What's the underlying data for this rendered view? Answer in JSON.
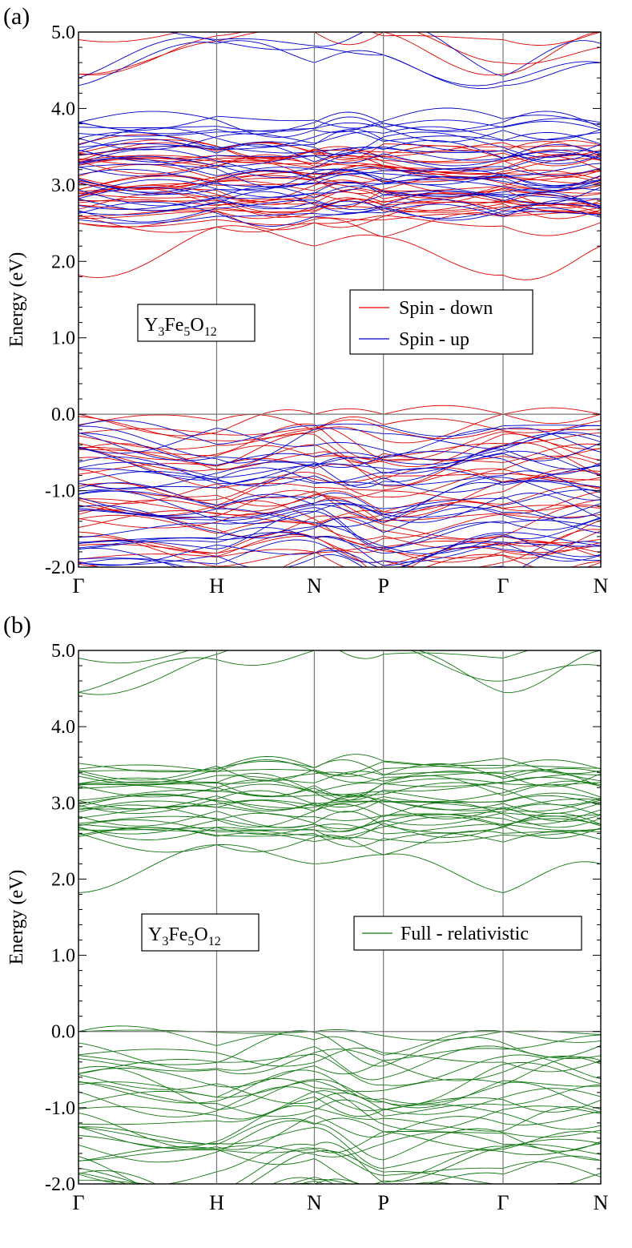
{
  "chart_data": [
    {
      "panel_label": "(a)",
      "type": "line",
      "ylabel": "Energy (eV)",
      "ylim": [
        -2.0,
        5.0
      ],
      "yticks": [
        "-2.0",
        "-1.0",
        "0.0",
        "1.0",
        "2.0",
        "3.0",
        "4.0",
        "5.0"
      ],
      "xticks": [
        "Γ",
        "H",
        "N",
        "P",
        "Γ",
        "N"
      ],
      "kpoint_positions": [
        0,
        1,
        1.707,
        2.207,
        3.073,
        3.78
      ],
      "fermi_level": 0.0,
      "compound": {
        "base": "Y",
        "n1": "3",
        "el2": "Fe",
        "n2": "5",
        "el3": "O",
        "n3": "12"
      },
      "legend": [
        {
          "label": "Spin - down",
          "color": "#dd0000"
        },
        {
          "label": "Spin - up",
          "color": "#0000cc"
        }
      ],
      "series": [
        {
          "name": "Spin - down",
          "color": "#dd0000",
          "valence_range": [
            -2.0,
            0.0
          ],
          "vbm_at": "Γ",
          "conduction_range": [
            1.82,
            5.0
          ],
          "cbm_at": "Γ",
          "cbm_value": 1.82,
          "dense_band_energy": 2.7
        },
        {
          "name": "Spin - up",
          "color": "#0000cc",
          "valence_range": [
            -2.0,
            -0.15
          ],
          "conduction_range": [
            2.6,
            5.0
          ],
          "cbm_value": 2.6,
          "dense_band_energy": 2.7
        }
      ]
    },
    {
      "panel_label": "(b)",
      "type": "line",
      "ylabel": "Energy (eV)",
      "ylim": [
        -2.0,
        5.0
      ],
      "yticks": [
        "-2.0",
        "-1.0",
        "0.0",
        "1.0",
        "2.0",
        "3.0",
        "4.0",
        "5.0"
      ],
      "xticks": [
        "Γ",
        "H",
        "N",
        "P",
        "Γ",
        "N"
      ],
      "kpoint_positions": [
        0,
        1,
        1.707,
        2.207,
        3.073,
        3.78
      ],
      "fermi_level": 0.0,
      "compound": {
        "base": "Y",
        "n1": "3",
        "el2": "Fe",
        "n2": "5",
        "el3": "O",
        "n3": "12"
      },
      "legend": [
        {
          "label": "Full - relativistic",
          "color": "#117711"
        }
      ],
      "series": [
        {
          "name": "Full - relativistic",
          "color": "#117711",
          "valence_range": [
            -2.0,
            0.0
          ],
          "vbm_at": "Γ",
          "conduction_range": [
            1.82,
            5.0
          ],
          "cbm_at": "Γ",
          "cbm_value": 1.82,
          "dense_band_energy": 2.7
        }
      ]
    }
  ]
}
